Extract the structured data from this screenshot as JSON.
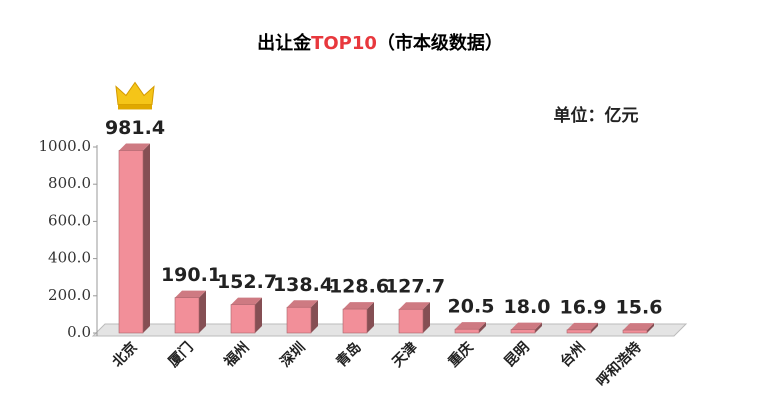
{
  "chart_data": {
    "type": "bar3d",
    "title": [
      "出让金",
      "TOP10",
      "（市本级数据）"
    ],
    "title_highlight_color": "#e8383d",
    "unit_label": "单位：亿元",
    "categories": [
      "北京",
      "厦门",
      "福州",
      "深圳",
      "青岛",
      "天津",
      "重庆",
      "昆明",
      "台州",
      "呼和浩特"
    ],
    "values": [
      981.4,
      190.1,
      152.7,
      138.4,
      128.6,
      127.7,
      20.5,
      18.0,
      16.9,
      15.6
    ],
    "value_labels": [
      "981.4",
      "190.1",
      "152.7",
      "138.4",
      "128.6",
      "127.7",
      "20.5",
      "18.0",
      "16.9",
      "15.6"
    ],
    "color": "#f28f99",
    "ylim": [
      0,
      1000
    ],
    "yticks": [
      {
        "value": 0,
        "label": "0.0"
      },
      {
        "value": 200,
        "label": "200.0"
      },
      {
        "value": 400,
        "label": "400.0"
      },
      {
        "value": 600,
        "label": "600.0"
      },
      {
        "value": 800,
        "label": "800.0"
      },
      {
        "value": 1000,
        "label": "1000.0"
      }
    ]
  }
}
